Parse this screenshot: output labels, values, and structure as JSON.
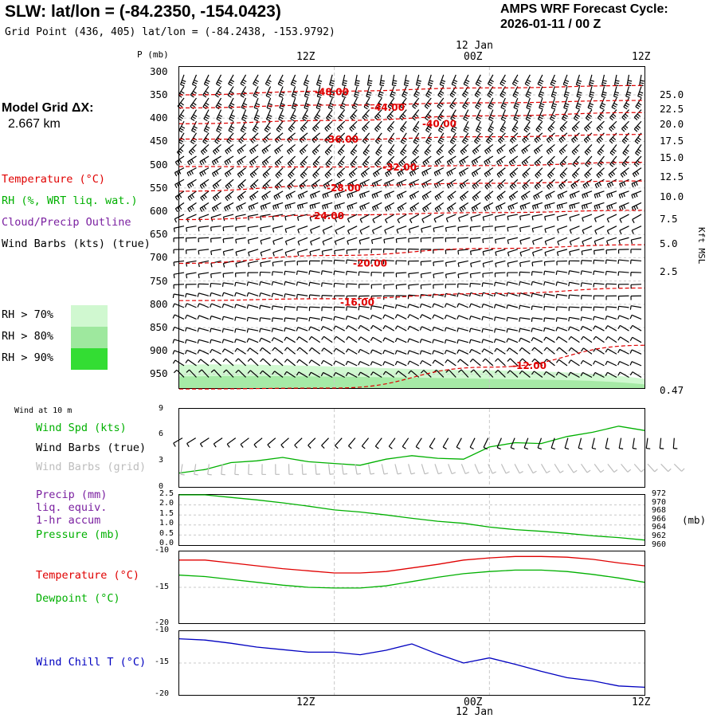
{
  "header": {
    "title": "SLW:  lat/lon = (-84.2350, -154.0423)",
    "grid_point": "Grid Point (436, 405) lat/lon = (-84.2438, -153.9792)",
    "forecast_label": "AMPS WRF Forecast Cycle:",
    "forecast_cycle": "2026-01-11 / 00  Z"
  },
  "model": {
    "label": "Model Grid ΔX:",
    "value": "2.667 km"
  },
  "legend": {
    "temperature": "Temperature (°C)",
    "rh": "RH (%, WRT liq. wat.)",
    "cloud": "Cloud/Precip Outline",
    "wind": "Wind Barbs (kts) (true)",
    "rh70": "RH > 70%",
    "rh80": "RH > 80%",
    "rh90": "RH > 90%",
    "rh70_color": "#d0f8d0",
    "rh80_color": "#9ee89e",
    "rh90_color": "#33dd33"
  },
  "time_axis": {
    "top_date": "12 Jan",
    "bottom_date": "12 Jan",
    "ticks": [
      "12Z",
      "00Z",
      "12Z"
    ]
  },
  "sounding": {
    "pressure_label": "P (mb)",
    "pressure_levels": [
      "300",
      "350",
      "400",
      "450",
      "500",
      "550",
      "600",
      "650",
      "700",
      "750",
      "800",
      "850",
      "900",
      "950"
    ],
    "height_axis_label": "Kft MSL",
    "height_levels": [
      "25.0",
      "22.5",
      "20.0",
      "17.5",
      "15.0",
      "12.5",
      "10.0",
      "7.5",
      "5.0",
      "2.5",
      "0.47"
    ],
    "temp_contour_labels": [
      "-48.00",
      "-44.00",
      "-40.00",
      "-36.00",
      "-32.00",
      "-28.00",
      "-24.00",
      "-20.00",
      "-16.00",
      "-12.00"
    ]
  },
  "wind_panel": {
    "title": "Wind at 10 m",
    "speed_label": "Wind Spd (kts)",
    "barbs_true": "Wind Barbs (true)",
    "barbs_grid": "Wind Barbs (grid)",
    "y_ticks": [
      "9",
      "6",
      "3",
      "0"
    ]
  },
  "precip_panel": {
    "precip_label": "Precip (mm)",
    "liq": "liq. equiv.",
    "accum": "1-hr accum",
    "pressure_label": "Pressure (mb)",
    "left_ticks": [
      "2.5",
      "2.0",
      "1.5",
      "1.0",
      "0.5",
      "0.0"
    ],
    "right_ticks": [
      "972",
      "970",
      "968",
      "966",
      "964",
      "962",
      "960"
    ],
    "unit": "(mb)"
  },
  "temp_panel": {
    "temperature_label": "Temperature (°C)",
    "dewpoint_label": "Dewpoint (°C)",
    "y_ticks": [
      "-10",
      "-15",
      "-20"
    ]
  },
  "windchill_panel": {
    "label": "Wind Chill T (°C)",
    "y_ticks": [
      "-10",
      "-15",
      "-20"
    ]
  },
  "colors": {
    "temperature": "#e00000",
    "green": "#00b000",
    "purple": "#7a1fa0",
    "blue": "#0000c0"
  },
  "chart_data": [
    {
      "type": "line",
      "title": "Wind at 10 m",
      "x": [
        0,
        2,
        4,
        6,
        8,
        10,
        12,
        14,
        16,
        18,
        20,
        22,
        24,
        26,
        28,
        30,
        32,
        34,
        36
      ],
      "series": [
        {
          "name": "Wind Spd (kts)",
          "values": [
            1.6,
            2.0,
            2.8,
            3.0,
            3.4,
            2.9,
            2.7,
            2.5,
            3.2,
            3.6,
            3.3,
            3.2,
            4.6,
            5.1,
            5.0,
            5.8,
            6.3,
            7.0,
            6.5
          ]
        }
      ],
      "ylim": [
        0,
        9
      ]
    },
    {
      "type": "line",
      "title": "Pressure (mb)",
      "x": [
        0,
        2,
        4,
        6,
        8,
        10,
        12,
        14,
        16,
        18,
        20,
        22,
        24,
        26,
        28,
        30,
        32,
        34,
        36
      ],
      "series": [
        {
          "name": "Pressure (mb)",
          "values": [
            972.0,
            972.0,
            971.4,
            970.8,
            970.1,
            969.3,
            968.4,
            967.9,
            967.2,
            966.4,
            965.7,
            965.2,
            964.3,
            963.7,
            963.3,
            962.8,
            962.2,
            961.8,
            961.2
          ]
        }
      ],
      "ylim": [
        960,
        972
      ]
    },
    {
      "type": "line",
      "title": "Temperature / Dewpoint (°C)",
      "x": [
        0,
        2,
        4,
        6,
        8,
        10,
        12,
        14,
        16,
        18,
        20,
        22,
        24,
        26,
        28,
        30,
        32,
        34,
        36
      ],
      "series": [
        {
          "name": "Temperature (°C)",
          "values": [
            -11.2,
            -11.2,
            -11.6,
            -12.0,
            -12.4,
            -12.7,
            -13.0,
            -13.0,
            -12.8,
            -12.3,
            -11.8,
            -11.2,
            -10.9,
            -10.7,
            -10.7,
            -10.8,
            -11.1,
            -11.6,
            -12.0
          ]
        },
        {
          "name": "Dewpoint (°C)",
          "values": [
            -13.3,
            -13.5,
            -13.9,
            -14.3,
            -14.7,
            -15.0,
            -15.1,
            -15.1,
            -14.8,
            -14.2,
            -13.6,
            -13.1,
            -12.8,
            -12.6,
            -12.6,
            -12.8,
            -13.2,
            -13.7,
            -14.3
          ]
        }
      ],
      "ylim": [
        -20,
        -10
      ]
    },
    {
      "type": "line",
      "title": "Wind Chill T (°C)",
      "x": [
        0,
        2,
        4,
        6,
        8,
        10,
        12,
        14,
        16,
        18,
        20,
        22,
        24,
        26,
        28,
        30,
        32,
        34,
        36
      ],
      "series": [
        {
          "name": "Wind Chill T (°C)",
          "values": [
            -11.2,
            -11.4,
            -11.9,
            -12.5,
            -12.9,
            -13.3,
            -13.3,
            -13.7,
            -13.0,
            -12.0,
            -13.6,
            -15.0,
            -14.2,
            -15.2,
            -16.3,
            -17.3,
            -17.8,
            -18.6,
            -18.8
          ]
        }
      ],
      "ylim": [
        -20,
        -10
      ]
    },
    {
      "type": "line",
      "title": "Temperature contours (°C) vs pressure",
      "x": [
        0,
        12,
        24,
        36
      ],
      "series": [
        {
          "name": "-48",
          "values": [
            350,
            342,
            335,
            330
          ]
        },
        {
          "name": "-44",
          "values": [
            378,
            372,
            367,
            362
          ]
        },
        {
          "name": "-40",
          "values": [
            412,
            405,
            395,
            388
          ]
        },
        {
          "name": "-36",
          "values": [
            445,
            446,
            440,
            435
          ]
        },
        {
          "name": "-32",
          "values": [
            504,
            505,
            502,
            495
          ]
        },
        {
          "name": "-28",
          "values": [
            557,
            545,
            540,
            535
          ]
        },
        {
          "name": "-24",
          "values": [
            618,
            608,
            603,
            598
          ]
        },
        {
          "name": "-20",
          "values": [
            712,
            695,
            680,
            672
          ]
        },
        {
          "name": "-16",
          "values": [
            792,
            788,
            777,
            765
          ]
        },
        {
          "name": "-12",
          "values": [
            982,
            980,
            935,
            888
          ]
        }
      ],
      "ylim": [
        980,
        290
      ]
    }
  ]
}
